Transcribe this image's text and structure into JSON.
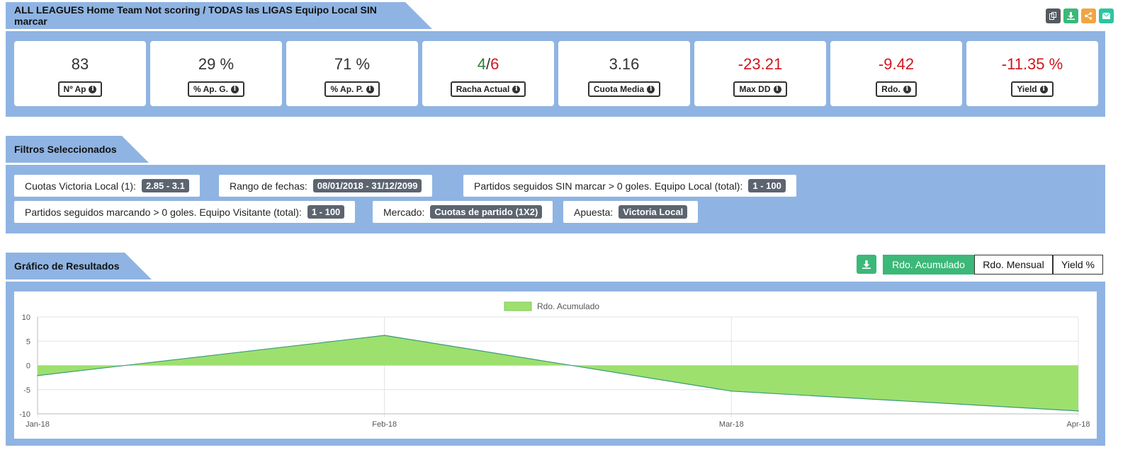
{
  "header": {
    "title": "ALL LEAGUES Home Team Not scoring / TODAS las LIGAS Equipo Local SIN marcar",
    "icons": [
      "copy-icon",
      "download-icon",
      "share-icon",
      "email-icon"
    ]
  },
  "stats": [
    {
      "value": "83",
      "label": "Nº Ap",
      "color": "default"
    },
    {
      "value": "29 %",
      "label": "% Ap. G.",
      "color": "default"
    },
    {
      "value": "71 %",
      "label": "% Ap. P.",
      "color": "default"
    },
    {
      "value_win": "4",
      "value_sep": "/",
      "value_loss": "6",
      "label": "Racha Actual"
    },
    {
      "value": "3.16",
      "label": "Cuota Media",
      "color": "default"
    },
    {
      "value": "-23.21",
      "label": "Max DD",
      "color": "red"
    },
    {
      "value": "-9.42",
      "label": "Rdo.",
      "color": "red"
    },
    {
      "value": "-11.35 %",
      "label": "Yield",
      "color": "red"
    }
  ],
  "filters": {
    "title": "Filtros Seleccionados",
    "items": [
      {
        "label": "Cuotas Victoria Local (1):",
        "badge": "2.85 - 3.1"
      },
      {
        "label": "Rango de fechas:",
        "badge": "08/01/2018 - 31/12/2099"
      },
      {
        "label": "Partidos seguidos SIN marcar > 0 goles. Equipo Local (total):",
        "badge": "1 - 100"
      },
      {
        "label": "Partidos seguidos marcando > 0 goles. Equipo Visitante (total):",
        "badge": "1 - 100"
      },
      {
        "label": "Mercado:",
        "badge": "Cuotas de partido (1X2)"
      },
      {
        "label": "Apuesta:",
        "badge": "Victoria Local"
      }
    ]
  },
  "results": {
    "title": "Gráfico de Resultados",
    "tabs": [
      "Rdo. Acumulado",
      "Rdo. Mensual",
      "Yield %"
    ],
    "active_tab": "Rdo. Acumulado"
  },
  "colors": {
    "accent": "#8fb4e3",
    "green": "#3cb878",
    "area_fill": "#9de06e",
    "area_line": "#3a9a7a",
    "red": "#d0161e",
    "badge": "#5c6470"
  },
  "chart_data": {
    "type": "area",
    "categories": [
      "Jan-18",
      "Feb-18",
      "Mar-18",
      "Apr-18"
    ],
    "series": [
      {
        "name": "Rdo. Acumulado",
        "values": [
          -2.1,
          6.2,
          -5.3,
          -9.4
        ]
      }
    ],
    "ylim": [
      -10,
      10
    ],
    "yticks": [
      "10",
      "5",
      "0",
      "-5",
      "-10"
    ],
    "legend_position": "top-center",
    "grid": true
  }
}
